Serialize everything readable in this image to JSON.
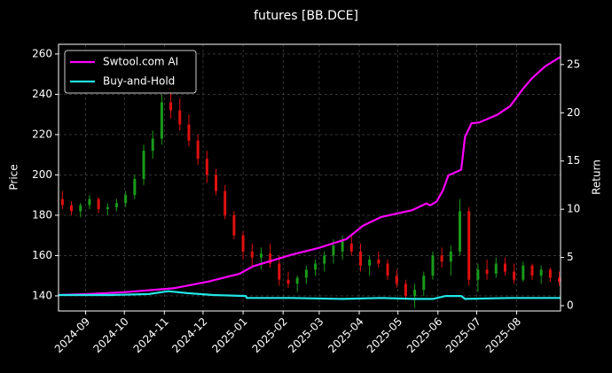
{
  "chart_data": {
    "type": "candlestick",
    "title": "futures [BB.DCE]",
    "y_label": "Price",
    "y2_label": "Return",
    "xlim": [
      0,
      389
    ],
    "xticks": [
      {
        "value": 21,
        "label": "2024-09"
      },
      {
        "value": 51,
        "label": "2024-10"
      },
      {
        "value": 82,
        "label": "2024-11"
      },
      {
        "value": 112,
        "label": "2024-12"
      },
      {
        "value": 143,
        "label": "2025-01"
      },
      {
        "value": 174,
        "label": "2025-02"
      },
      {
        "value": 202,
        "label": "2025-03"
      },
      {
        "value": 233,
        "label": "2025-04"
      },
      {
        "value": 263,
        "label": "2025-05"
      },
      {
        "value": 294,
        "label": "2025-06"
      },
      {
        "value": 324,
        "label": "2025-07"
      },
      {
        "value": 355,
        "label": "2025-08"
      }
    ],
    "ylim": [
      132.5,
      264.8
    ],
    "yticks": [
      140,
      160,
      180,
      200,
      220,
      240,
      260
    ],
    "y2lim": [
      -0.55,
      27.1
    ],
    "y2ticks": [
      0,
      5,
      10,
      15,
      20,
      25
    ],
    "grid": true,
    "legend": "upper left",
    "up_color": "#1a9a1a",
    "down_color": "#e01010",
    "x": [
      3,
      10,
      17,
      24,
      31,
      38,
      45,
      52,
      59,
      66,
      73,
      80,
      87,
      94,
      101,
      108,
      115,
      122,
      129,
      136,
      143,
      150,
      157,
      164,
      171,
      178,
      185,
      192,
      199,
      206,
      213,
      220,
      227,
      234,
      241,
      248,
      255,
      262,
      269,
      276,
      283,
      290,
      297,
      304,
      311,
      318,
      325,
      332,
      339,
      346,
      353,
      360,
      367,
      374,
      381,
      388
    ],
    "open": [
      188,
      185,
      182,
      185,
      188,
      183,
      184,
      186,
      190,
      198,
      212,
      218,
      236,
      232,
      225,
      217,
      208,
      200,
      192,
      180,
      170,
      162,
      159,
      161,
      156,
      148,
      146,
      149,
      153,
      156,
      160,
      162,
      166,
      162,
      155,
      158,
      156,
      150,
      146,
      140,
      143,
      150,
      160,
      157,
      162,
      182,
      148,
      153,
      151,
      156,
      152,
      148,
      155,
      150,
      153,
      149
    ],
    "high": [
      192,
      187,
      186,
      190,
      189,
      186,
      188,
      192,
      200,
      215,
      222,
      240,
      245,
      238,
      230,
      220,
      212,
      203,
      195,
      182,
      172,
      166,
      164,
      166,
      160,
      152,
      150,
      155,
      158,
      162,
      168,
      170,
      170,
      166,
      160,
      162,
      158,
      153,
      148,
      146,
      152,
      162,
      164,
      165,
      188,
      184,
      156,
      158,
      159,
      159,
      156,
      157,
      156,
      155,
      154,
      152
    ],
    "low": [
      183,
      180,
      179,
      183,
      181,
      180,
      182,
      184,
      188,
      195,
      208,
      215,
      228,
      222,
      214,
      205,
      196,
      190,
      178,
      168,
      158,
      155,
      153,
      154,
      145,
      144,
      142,
      146,
      150,
      152,
      156,
      158,
      160,
      152,
      150,
      154,
      148,
      144,
      138,
      134,
      140,
      148,
      154,
      150,
      160,
      145,
      142,
      148,
      149,
      150,
      146,
      147,
      148,
      146,
      147,
      145
    ],
    "close": [
      185,
      182,
      185,
      188,
      183,
      184,
      186,
      190,
      198,
      212,
      218,
      236,
      232,
      225,
      217,
      208,
      200,
      192,
      180,
      170,
      162,
      159,
      161,
      156,
      148,
      146,
      149,
      153,
      156,
      160,
      165,
      167,
      162,
      155,
      158,
      156,
      150,
      146,
      140,
      143,
      150,
      160,
      157,
      162,
      182,
      148,
      153,
      151,
      156,
      152,
      148,
      155,
      150,
      153,
      149,
      147
    ],
    "series": [
      {
        "name": "Swtool.com AI",
        "color": "#ff00ff",
        "axis": "y2",
        "x": [
          0,
          23,
          51,
          89,
          116,
          140,
          151,
          181,
          202,
          223,
          236,
          250,
          274,
          285,
          288,
          293,
          298,
          302,
          312,
          315,
          320,
          326,
          340,
          350,
          360,
          367,
          377,
          389
        ],
        "values": [
          1.1,
          1.2,
          1.4,
          1.8,
          2.5,
          3.3,
          4.1,
          5.3,
          6.0,
          6.9,
          8.3,
          9.2,
          9.9,
          10.6,
          10.4,
          10.8,
          12.0,
          13.5,
          14.1,
          17.5,
          18.9,
          19.0,
          19.8,
          20.7,
          22.5,
          23.6,
          24.8,
          25.8
        ]
      },
      {
        "name": "Buy-and-Hold",
        "color": "#22e6e6",
        "axis": "y2",
        "x": [
          0,
          40,
          70,
          85,
          100,
          120,
          145,
          146,
          180,
          220,
          250,
          275,
          290,
          300,
          312,
          315,
          350,
          389
        ],
        "values": [
          1.1,
          1.1,
          1.2,
          1.5,
          1.3,
          1.1,
          1.0,
          0.8,
          0.8,
          0.7,
          0.8,
          0.7,
          0.7,
          1.0,
          1.0,
          0.7,
          0.8,
          0.8
        ]
      }
    ]
  }
}
